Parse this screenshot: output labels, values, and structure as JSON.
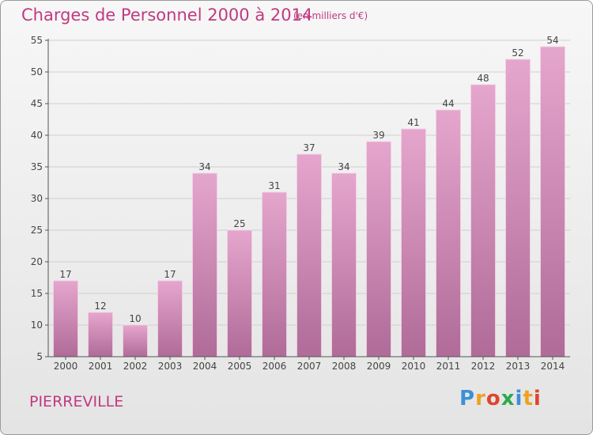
{
  "header": {
    "title": "Charges de Personnel 2000 à 2014",
    "unit": "(en milliers d'€)"
  },
  "footer": {
    "place": "PIERREVILLE",
    "brand": "Proxiti",
    "brand_letters": [
      "P",
      "r",
      "o",
      "x",
      "i",
      "t",
      "i"
    ],
    "brand_colors": [
      "#3d8fd6",
      "#f0a020",
      "#e0452c",
      "#2fa84f",
      "#3d8fd6",
      "#f0a020",
      "#e0452c"
    ]
  },
  "colors": {
    "title": "#c03a80",
    "bar_top": "#e5a6cd",
    "bar_bottom": "#b06b98",
    "grid": "#cfcfcf",
    "axis": "#555555"
  },
  "chart_data": {
    "type": "bar",
    "title": "Charges de Personnel 2000 à 2014",
    "subtitle": "(en milliers d'€)",
    "xlabel": "",
    "ylabel": "",
    "categories": [
      "2000",
      "2001",
      "2002",
      "2003",
      "2004",
      "2005",
      "2006",
      "2007",
      "2008",
      "2009",
      "2010",
      "2011",
      "2012",
      "2013",
      "2014"
    ],
    "values": [
      17,
      12,
      10,
      17,
      34,
      25,
      31,
      37,
      34,
      39,
      41,
      44,
      48,
      52,
      54
    ],
    "ylim": [
      5,
      55
    ],
    "yticks": [
      5,
      10,
      15,
      20,
      25,
      30,
      35,
      40,
      45,
      50,
      55
    ],
    "grid": true
  }
}
